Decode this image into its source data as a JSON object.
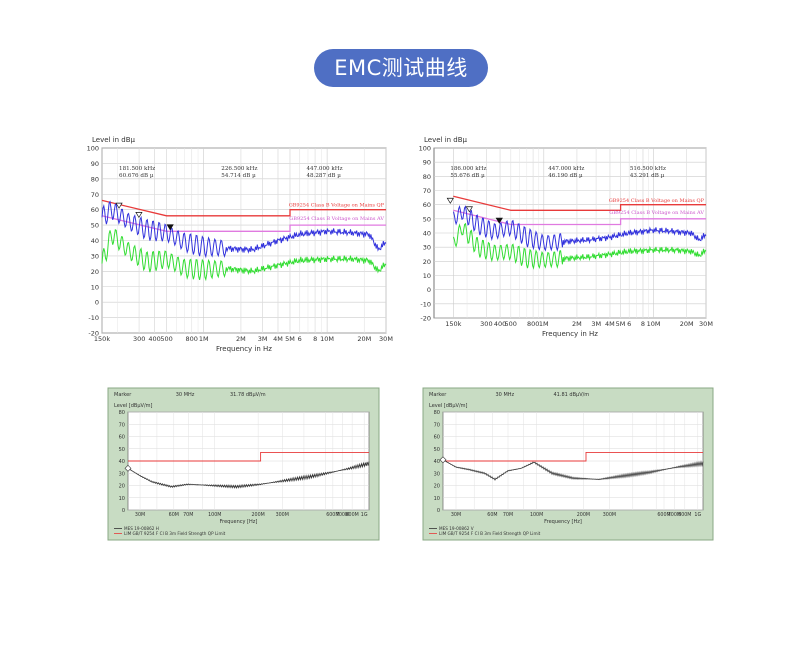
{
  "page_title": "EMC测试曲线",
  "chart_data": [
    {
      "type": "line",
      "ylabel": "Level in dBµ",
      "xlabel": "Frequency in Hz",
      "x_scale": "log",
      "xlim": [
        150000,
        30000000
      ],
      "ylim": [
        -20,
        100
      ],
      "yticks": [
        "100",
        "90",
        "80",
        "70",
        "60",
        "50",
        "40",
        "30",
        "20",
        "10",
        "0",
        "-10",
        "-20"
      ],
      "xticks": [
        "150k",
        "300",
        "400",
        "500",
        "800",
        "1M",
        "2M",
        "3M",
        "4M",
        "5M",
        "6",
        "8",
        "10M",
        "20M",
        "30M"
      ],
      "markers": [
        {
          "freq": "181.500 kHz",
          "level": "60.676 dB µ"
        },
        {
          "freq": "226.500 kHz",
          "level": "54.714 dB µ"
        },
        {
          "freq": "447.000 kHz",
          "level": "48.287 dB µ"
        }
      ],
      "limit_labels": [
        "GB9254 Class B Voltage on Mains QP",
        "GB9254 Class B Voltage on Mains AV"
      ],
      "series": [
        {
          "name": "GB9254 Class B Voltage on Mains QP",
          "color": "#e83a3a",
          "x": [
            150000,
            500000,
            5000000,
            5001000,
            30000000
          ],
          "y": [
            66,
            56,
            56,
            60,
            60
          ]
        },
        {
          "name": "GB9254 Class B Voltage on Mains AV",
          "color": "#e07ae0",
          "x": [
            150000,
            500000,
            5000000,
            5001000,
            30000000
          ],
          "y": [
            56,
            46,
            46,
            50,
            50
          ]
        },
        {
          "color": "#3333dd",
          "x": [
            150000,
            180000,
            250000,
            350000,
            500000,
            700000,
            1000000,
            1500000,
            2500000,
            4000000,
            6000000,
            10000000,
            16000000,
            22000000,
            26000000,
            30000000
          ],
          "y": [
            55,
            60,
            52,
            47,
            45,
            39,
            36,
            35,
            34,
            40,
            44,
            46,
            45,
            44,
            34,
            39
          ]
        },
        {
          "color": "#33dd33",
          "x": [
            150000,
            180000,
            250000,
            350000,
            500000,
            700000,
            1000000,
            1500000,
            2500000,
            4000000,
            6000000,
            10000000,
            16000000,
            22000000,
            26000000,
            30000000
          ],
          "y": [
            25,
            44,
            33,
            26,
            28,
            22,
            21,
            22,
            20,
            24,
            27,
            28,
            28,
            27,
            20,
            25
          ]
        }
      ]
    },
    {
      "type": "line",
      "ylabel": "Level in dBµ",
      "xlabel": "Frequency in Hz",
      "x_scale": "log",
      "xlim": [
        100000,
        30000000
      ],
      "ylim": [
        -20,
        100
      ],
      "yticks": [
        "100",
        "90",
        "80",
        "70",
        "60",
        "50",
        "40",
        "30",
        "20",
        "10",
        "0",
        "-10",
        "-20"
      ],
      "xticks": [
        "150k",
        "300",
        "400",
        "500",
        "800",
        "1M",
        "2M",
        "3M",
        "4M",
        "5M",
        "6",
        "8",
        "10M",
        "20M",
        "30M"
      ],
      "markers": [
        {
          "freq": "186.000 kHz",
          "level": "55.676 dB µ"
        },
        {
          "freq": "447.000 kHz",
          "level": "46.190 dB µ"
        },
        {
          "freq": "516.500 kHz",
          "level": "43.291 dB µ"
        }
      ],
      "limit_labels": [
        "GB9254 Class B Voltage on Mains QP",
        "GB9254 Class B Voltage on Mains AV"
      ],
      "series": [
        {
          "name": "GB9254 Class B Voltage on Mains QP",
          "color": "#e83a3a",
          "x": [
            150000,
            500000,
            5000000,
            5001000,
            30000000
          ],
          "y": [
            66,
            56,
            56,
            60,
            60
          ]
        },
        {
          "name": "GB9254 Class B Voltage on Mains AV",
          "color": "#e07ae0",
          "x": [
            150000,
            500000,
            5000000,
            5001000,
            30000000
          ],
          "y": [
            56,
            46,
            46,
            50,
            50
          ]
        },
        {
          "color": "#3333dd",
          "x": [
            150000,
            180000,
            250000,
            350000,
            500000,
            700000,
            1000000,
            1500000,
            2500000,
            4000000,
            6000000,
            10000000,
            16000000,
            22000000,
            26000000,
            30000000
          ],
          "y": [
            50,
            55,
            46,
            41,
            44,
            37,
            33,
            34,
            35,
            37,
            40,
            42,
            41,
            40,
            35,
            39
          ]
        },
        {
          "color": "#33dd33",
          "x": [
            150000,
            180000,
            250000,
            350000,
            500000,
            700000,
            1000000,
            1500000,
            2500000,
            4000000,
            6000000,
            10000000,
            16000000,
            22000000,
            26000000,
            30000000
          ],
          "y": [
            32,
            44,
            30,
            26,
            27,
            22,
            21,
            22,
            23,
            25,
            27,
            28,
            28,
            27,
            24,
            28
          ]
        }
      ]
    },
    {
      "type": "line",
      "title": "Marker",
      "marker_freq": "30 MHz",
      "marker_level": "31.78 dBµV/m",
      "ylabel": "Level [dBµV/m]",
      "xlabel": "Frequency [Hz]",
      "ylim": [
        0,
        80
      ],
      "yticks": [
        "80",
        "70",
        "60",
        "50",
        "40",
        "30",
        "20",
        "10",
        "0"
      ],
      "xticks": [
        "30M",
        "50M",
        "60M",
        "70M",
        "80M",
        "100M",
        "200M",
        "300M",
        "400M",
        "500M",
        "600M",
        "700M",
        "800M",
        "1G"
      ],
      "legend": [
        "MES 19-00862 H",
        "LIM GB/T 9254 F Cl B 3m Field Strength QP Limit"
      ],
      "series": [
        {
          "color": "#e83a3a",
          "x": [
            0,
            0.55,
            0.55,
            1
          ],
          "y": [
            40,
            40,
            47,
            47
          ]
        },
        {
          "color": "#333333",
          "x": [
            0,
            0.05,
            0.1,
            0.18,
            0.25,
            0.35,
            0.45,
            0.55,
            0.65,
            0.75,
            0.85,
            0.92,
            1
          ],
          "y": [
            34,
            28,
            23,
            19,
            21,
            20,
            19,
            21,
            24,
            27,
            31,
            34,
            38
          ]
        }
      ]
    },
    {
      "type": "line",
      "title": "Marker",
      "marker_freq": "30 MHz",
      "marker_level": "41.81 dBµV/m",
      "ylabel": "Level [dBµV/m]",
      "xlabel": "Frequency [Hz]",
      "ylim": [
        0,
        80
      ],
      "yticks": [
        "80",
        "70",
        "60",
        "50",
        "40",
        "30",
        "20",
        "10",
        "0"
      ],
      "xticks": [
        "30M",
        "50M",
        "60M",
        "70M",
        "80M",
        "100M",
        "200M",
        "300M",
        "400M",
        "500M",
        "600M",
        "700M",
        "800M",
        "1G"
      ],
      "legend": [
        "MES 19-00862 V",
        "LIM GB/T 9254 F Cl B 3m Field Strength QP Limit"
      ],
      "series": [
        {
          "color": "#e83a3a",
          "x": [
            0,
            0.55,
            0.55,
            1
          ],
          "y": [
            40,
            40,
            47,
            47
          ]
        },
        {
          "color": "#333333",
          "x": [
            0,
            0.05,
            0.1,
            0.16,
            0.2,
            0.25,
            0.3,
            0.35,
            0.42,
            0.5,
            0.6,
            0.7,
            0.8,
            0.9,
            1
          ],
          "y": [
            41,
            35,
            33,
            30,
            25,
            32,
            34,
            39,
            30,
            26,
            25,
            28,
            31,
            35,
            38
          ]
        }
      ]
    }
  ]
}
